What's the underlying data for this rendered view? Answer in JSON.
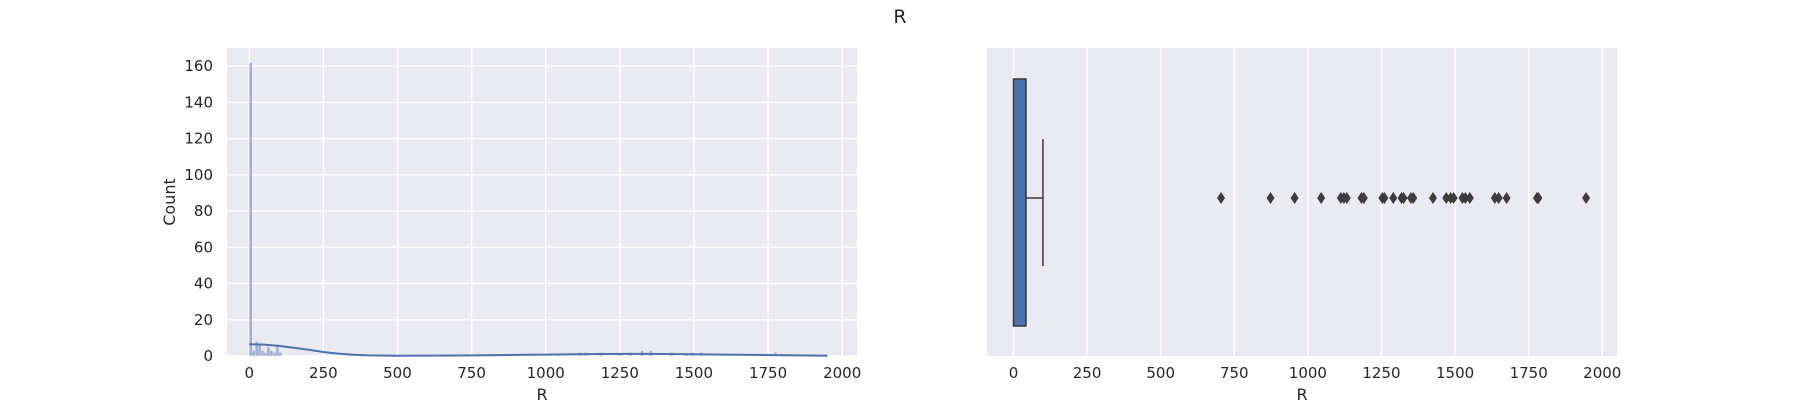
{
  "figure": {
    "title": "R"
  },
  "colors": {
    "plot_bg": "#EAEAF2",
    "grid": "#FFFFFF",
    "hist_bar": "#4C72B0",
    "kde_line": "#4C72B0",
    "box_fill": "#4C72B0",
    "text": "#262626"
  },
  "chart_data": [
    {
      "type": "bar",
      "subtype": "histogram_with_kde",
      "xlabel": "R",
      "ylabel": "Count",
      "xlim": [
        -75,
        2050
      ],
      "ylim": [
        0,
        170
      ],
      "x_ticks": [
        0,
        250,
        500,
        750,
        1000,
        1250,
        1500,
        1750,
        2000
      ],
      "y_ticks": [
        0,
        20,
        40,
        60,
        80,
        100,
        120,
        140,
        160
      ],
      "grid": true,
      "bin_width": 10,
      "bins": [
        {
          "x": 0,
          "count": 162
        },
        {
          "x": 10,
          "count": 3
        },
        {
          "x": 20,
          "count": 8
        },
        {
          "x": 30,
          "count": 7
        },
        {
          "x": 40,
          "count": 3
        },
        {
          "x": 50,
          "count": 2
        },
        {
          "x": 60,
          "count": 5
        },
        {
          "x": 70,
          "count": 3
        },
        {
          "x": 80,
          "count": 2
        },
        {
          "x": 90,
          "count": 6
        },
        {
          "x": 100,
          "count": 2
        },
        {
          "x": 700,
          "count": 1
        },
        {
          "x": 870,
          "count": 1
        },
        {
          "x": 950,
          "count": 1
        },
        {
          "x": 1040,
          "count": 1
        },
        {
          "x": 1110,
          "count": 2
        },
        {
          "x": 1130,
          "count": 2
        },
        {
          "x": 1180,
          "count": 2
        },
        {
          "x": 1250,
          "count": 1
        },
        {
          "x": 1280,
          "count": 2
        },
        {
          "x": 1320,
          "count": 3
        },
        {
          "x": 1350,
          "count": 3
        },
        {
          "x": 1420,
          "count": 2
        },
        {
          "x": 1470,
          "count": 1
        },
        {
          "x": 1490,
          "count": 2
        },
        {
          "x": 1520,
          "count": 2
        },
        {
          "x": 1770,
          "count": 2
        },
        {
          "x": 1940,
          "count": 1
        }
      ],
      "kde": {
        "x": [
          0,
          50,
          100,
          150,
          200,
          250,
          300,
          350,
          400,
          500,
          600,
          700,
          800,
          900,
          1000,
          1100,
          1200,
          1300,
          1400,
          1500,
          1600,
          1700,
          1800,
          1900,
          1950
        ],
        "y": [
          6.5,
          6.3,
          5.6,
          4.6,
          3.4,
          2.2,
          1.3,
          0.7,
          0.35,
          0.15,
          0.2,
          0.3,
          0.45,
          0.6,
          0.8,
          1.0,
          1.1,
          1.15,
          1.1,
          1.0,
          0.8,
          0.6,
          0.45,
          0.25,
          0.15
        ]
      }
    },
    {
      "type": "box",
      "xlabel": "R",
      "xlim": [
        -90,
        2050
      ],
      "x_ticks": [
        0,
        250,
        500,
        750,
        1000,
        1250,
        1500,
        1750,
        2000
      ],
      "grid": true,
      "q1": 0,
      "median": 42,
      "q3": 42,
      "whisker_low": 0,
      "whisker_high": 100,
      "outliers": [
        705,
        873,
        955,
        1045,
        1112,
        1122,
        1132,
        1182,
        1190,
        1253,
        1260,
        1290,
        1318,
        1325,
        1350,
        1358,
        1425,
        1470,
        1485,
        1495,
        1525,
        1535,
        1550,
        1635,
        1648,
        1675,
        1778,
        1783,
        1945
      ]
    }
  ]
}
